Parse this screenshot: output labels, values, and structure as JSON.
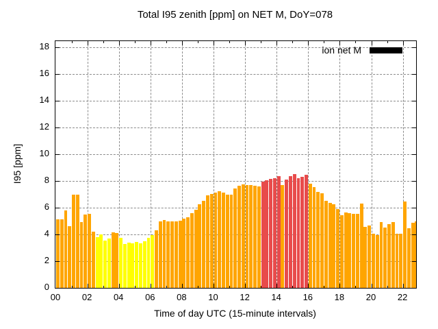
{
  "title": "Total I95 zenith [ppm] on NET M, DoY=078",
  "legend": {
    "label": "ion net M",
    "swatch_color": "#000000"
  },
  "axes": {
    "x_label": "Time of day UTC (15-minute intervals)",
    "y_label": "I95 [ppm]",
    "y_ticks": [
      0,
      2,
      4,
      6,
      8,
      10,
      12,
      14,
      16,
      18
    ],
    "x_tick_labels": [
      "00",
      "02",
      "04",
      "06",
      "08",
      "10",
      "12",
      "14",
      "16",
      "18",
      "20",
      "22"
    ],
    "y_range": [
      0,
      18.5
    ],
    "grid": "dashed gray, on"
  },
  "colors": {
    "orange": "#FFA500",
    "yellow": "#FFFF00",
    "red": "#E84B4B",
    "grid": "#8a8a8a",
    "legend_swatch": "#000000"
  },
  "chart_data": {
    "type": "bar",
    "title": "Total I95 zenith [ppm] on NET M, DoY=078",
    "xlabel": "Time of day UTC (15-minute intervals)",
    "ylabel": "I95 [ppm]",
    "ylim": [
      0,
      18.5
    ],
    "legend_position": "top-right inside",
    "series_name": "ion net M",
    "x": [
      "00:00",
      "00:15",
      "00:30",
      "00:45",
      "01:00",
      "01:15",
      "01:30",
      "01:45",
      "02:00",
      "02:15",
      "02:30",
      "02:45",
      "03:00",
      "03:15",
      "03:30",
      "03:45",
      "04:00",
      "04:15",
      "04:30",
      "04:45",
      "05:00",
      "05:15",
      "05:30",
      "05:45",
      "06:00",
      "06:15",
      "06:30",
      "06:45",
      "07:00",
      "07:15",
      "07:30",
      "07:45",
      "08:00",
      "08:15",
      "08:30",
      "08:45",
      "09:00",
      "09:15",
      "09:30",
      "09:45",
      "10:00",
      "10:15",
      "10:30",
      "10:45",
      "11:00",
      "11:15",
      "11:30",
      "11:45",
      "12:00",
      "12:15",
      "12:30",
      "12:45",
      "13:00",
      "13:15",
      "13:30",
      "13:45",
      "14:00",
      "14:15",
      "14:30",
      "14:45",
      "15:00",
      "15:15",
      "15:30",
      "15:45",
      "16:00",
      "16:15",
      "16:30",
      "16:45",
      "17:00",
      "17:15",
      "17:30",
      "17:45",
      "18:00",
      "18:15",
      "18:30",
      "18:45",
      "19:00",
      "19:15",
      "19:30",
      "19:45",
      "20:00",
      "20:15",
      "20:30",
      "20:45",
      "21:00",
      "21:15",
      "21:30",
      "21:45",
      "22:00",
      "22:15",
      "22:30",
      "22:45"
    ],
    "values": [
      5.15,
      5.15,
      5.8,
      4.6,
      6.95,
      6.95,
      4.9,
      5.5,
      5.55,
      4.2,
      3.8,
      4.0,
      3.55,
      3.7,
      4.15,
      4.1,
      3.75,
      3.3,
      3.4,
      3.35,
      3.45,
      3.35,
      3.5,
      3.75,
      3.95,
      4.3,
      5.0,
      5.1,
      5.0,
      4.95,
      5.0,
      5.05,
      5.2,
      5.3,
      5.6,
      5.85,
      6.25,
      6.5,
      6.9,
      7.05,
      7.15,
      7.25,
      7.15,
      7.0,
      7.0,
      7.45,
      7.65,
      7.75,
      7.7,
      7.7,
      7.65,
      7.6,
      7.95,
      8.05,
      8.15,
      8.2,
      8.35,
      7.7,
      8.1,
      8.35,
      8.5,
      8.2,
      8.3,
      8.45,
      7.8,
      7.55,
      7.2,
      7.1,
      6.5,
      6.35,
      6.25,
      5.9,
      5.45,
      5.65,
      5.6,
      5.55,
      5.55,
      6.3,
      4.55,
      4.65,
      4.05,
      3.95,
      4.9,
      4.5,
      4.75,
      4.9,
      4.05,
      4.05,
      6.45,
      4.45,
      4.85,
      4.95
    ],
    "bar_colors": [
      "o",
      "o",
      "o",
      "o",
      "o",
      "o",
      "o",
      "o",
      "o",
      "o",
      "y",
      "y",
      "y",
      "y",
      "o",
      "o",
      "y",
      "y",
      "y",
      "y",
      "y",
      "y",
      "y",
      "y",
      "y",
      "o",
      "o",
      "o",
      "o",
      "o",
      "o",
      "o",
      "o",
      "o",
      "o",
      "o",
      "o",
      "o",
      "o",
      "o",
      "o",
      "o",
      "o",
      "o",
      "o",
      "o",
      "o",
      "o",
      "o",
      "o",
      "o",
      "o",
      "r",
      "r",
      "r",
      "r",
      "r",
      "o",
      "r",
      "r",
      "r",
      "r",
      "r",
      "r",
      "o",
      "o",
      "o",
      "o",
      "o",
      "o",
      "o",
      "o",
      "o",
      "o",
      "o",
      "o",
      "o",
      "o",
      "o",
      "o",
      "o",
      "o",
      "o",
      "o",
      "o",
      "o",
      "o",
      "o",
      "o",
      "o",
      "o",
      "o"
    ]
  }
}
